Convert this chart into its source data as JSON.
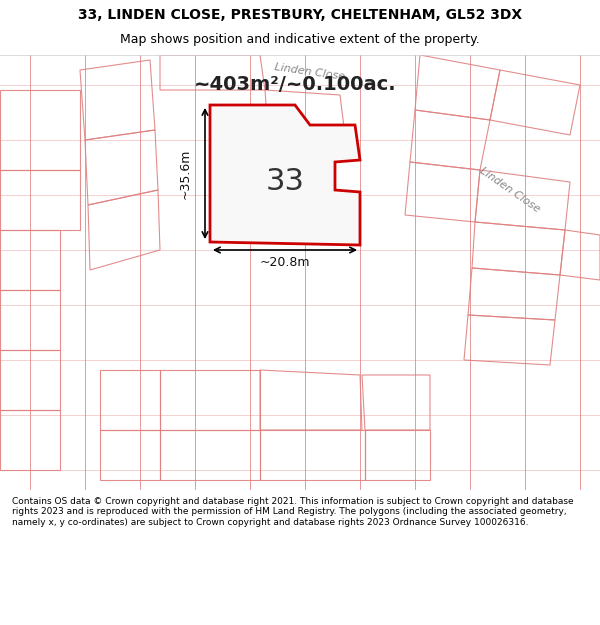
{
  "title_line1": "33, LINDEN CLOSE, PRESTBURY, CHELTENHAM, GL52 3DX",
  "title_line2": "Map shows position and indicative extent of the property.",
  "area_label": "~403m²/~0.100ac.",
  "plot_number": "33",
  "dim_vertical": "~35.6m",
  "dim_horizontal": "~20.8m",
  "street_label1": "Linden Close",
  "street_label2": "Linden Close",
  "footer_text": "Contains OS data © Crown copyright and database right 2021. This information is subject to Crown copyright and database rights 2023 and is reproduced with the permission of HM Land Registry. The polygons (including the associated geometry, namely x, y co-ordinates) are subject to Crown copyright and database rights 2023 Ordnance Survey 100026316.",
  "bg_color": "#f0efef",
  "map_bg": "#f0efef",
  "plot_fill": "#f5f5f5",
  "plot_edge_color": "#cc0000",
  "other_edge_color": "#e08080",
  "grid_color": "#e08080",
  "title_bg": "#ffffff",
  "footer_bg": "#ffffff"
}
